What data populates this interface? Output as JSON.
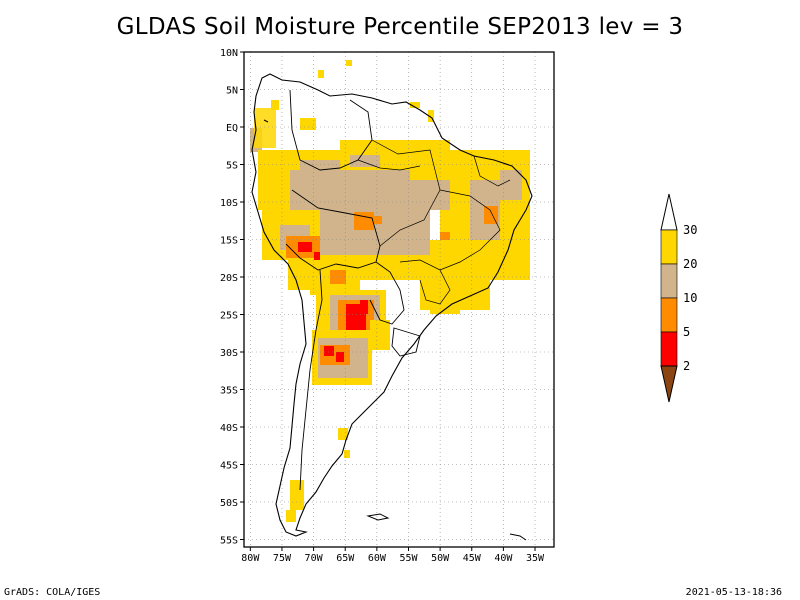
{
  "title": "GLDAS Soil Moisture Percentile SEP2013 lev = 3",
  "footer_left": "GrADS: COLA/IGES",
  "footer_right": "2021-05-13-18:36",
  "map": {
    "lat_labels": [
      "10N",
      "5N",
      "EQ",
      "5S",
      "10S",
      "15S",
      "20S",
      "25S",
      "30S",
      "35S",
      "40S",
      "45S",
      "50S",
      "55S"
    ],
    "lon_labels": [
      "80W",
      "75W",
      "70W",
      "65W",
      "60W",
      "55W",
      "50W",
      "45W",
      "40W",
      "35W"
    ],
    "lat_range": [
      -56,
      10
    ],
    "lon_range": [
      -81,
      -32
    ],
    "grid": true
  },
  "legend": {
    "labels": [
      "2",
      "5",
      "10",
      "20",
      "30"
    ],
    "colors": [
      "#8b4513",
      "#ff0000",
      "#ff8c00",
      "#d2b48c",
      "#ffd700",
      "#ffffff"
    ]
  }
}
